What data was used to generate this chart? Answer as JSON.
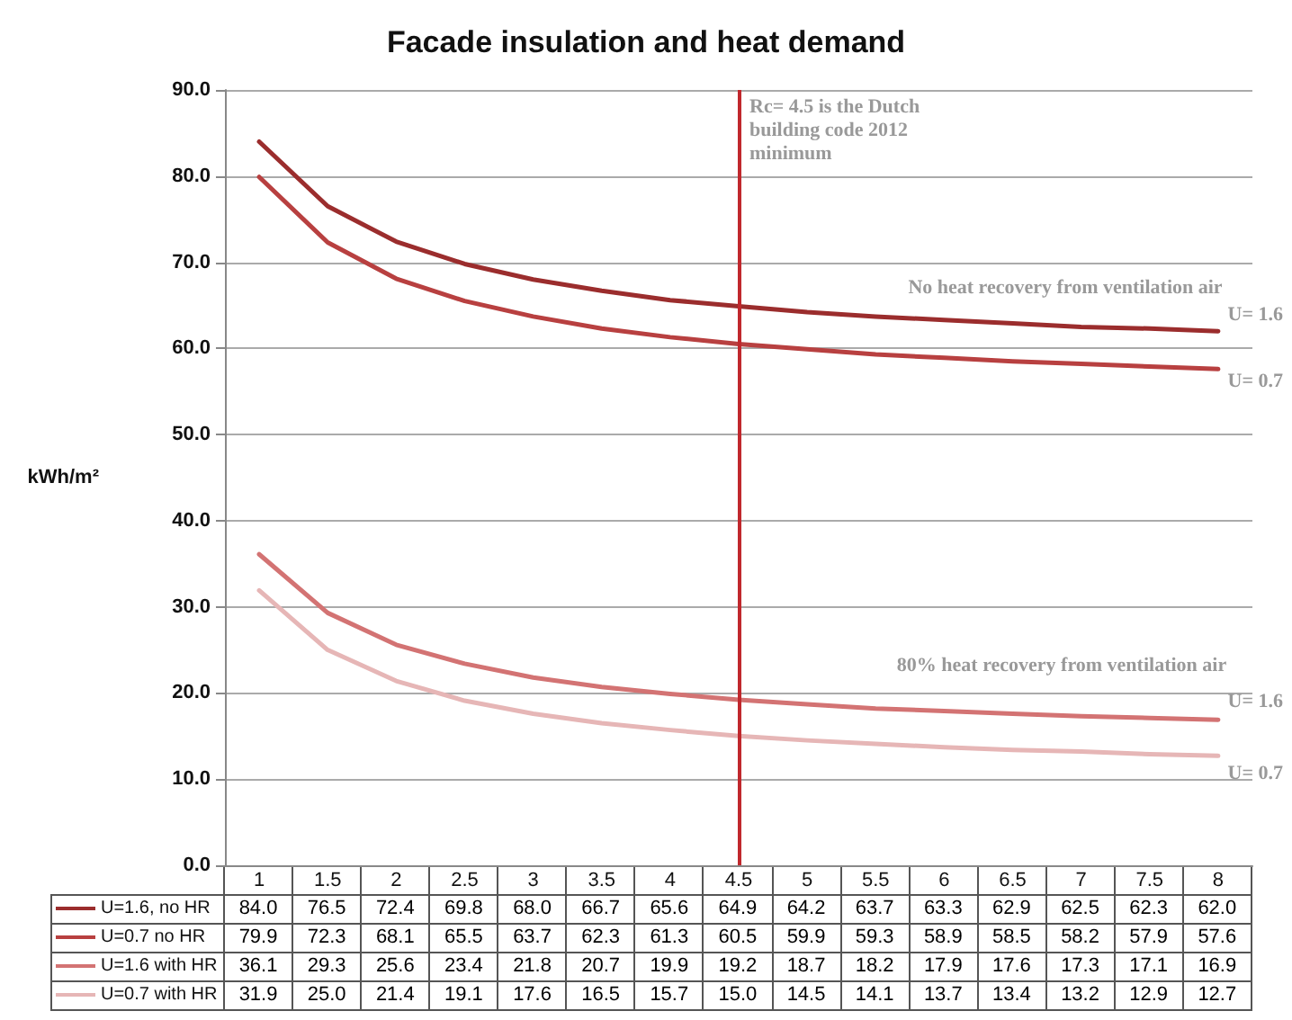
{
  "chart_data": {
    "type": "line",
    "title": "Facade insulation and heat demand",
    "ylabel": "kWh/m²",
    "categories": [
      "1",
      "1.5",
      "2",
      "2.5",
      "3",
      "3.5",
      "4",
      "4.5",
      "5",
      "5.5",
      "6",
      "6.5",
      "7",
      "7.5",
      "8"
    ],
    "series": [
      {
        "name": "U=1.6, no HR",
        "color": "#9b2d2d",
        "values": [
          84.0,
          76.5,
          72.4,
          69.8,
          68.0,
          66.7,
          65.6,
          64.9,
          64.2,
          63.7,
          63.3,
          62.9,
          62.5,
          62.3,
          62.0
        ],
        "value_labels": [
          "84.0",
          "76.5",
          "72.4",
          "69.8",
          "68.0",
          "66.7",
          "65.6",
          "64.9",
          "64.2",
          "63.7",
          "63.3",
          "62.9",
          "62.5",
          "62.3",
          "62.0"
        ]
      },
      {
        "name": "U=0.7 no HR",
        "color": "#b84040",
        "values": [
          79.9,
          72.3,
          68.1,
          65.5,
          63.7,
          62.3,
          61.3,
          60.5,
          59.9,
          59.3,
          58.9,
          58.5,
          58.2,
          57.9,
          57.6
        ],
        "value_labels": [
          "79.9",
          "72.3",
          "68.1",
          "65.5",
          "63.7",
          "62.3",
          "61.3",
          "60.5",
          "59.9",
          "59.3",
          "58.9",
          "58.5",
          "58.2",
          "57.9",
          "57.6"
        ]
      },
      {
        "name": "U=1.6 with HR",
        "color": "#d37373",
        "values": [
          36.1,
          29.3,
          25.6,
          23.4,
          21.8,
          20.7,
          19.9,
          19.2,
          18.7,
          18.2,
          17.9,
          17.6,
          17.3,
          17.1,
          16.9
        ],
        "value_labels": [
          "36.1",
          "29.3",
          "25.6",
          "23.4",
          "21.8",
          "20.7",
          "19.9",
          "19.2",
          "18.7",
          "18.2",
          "17.9",
          "17.6",
          "17.3",
          "17.1",
          "16.9"
        ]
      },
      {
        "name": "U=0.7 with HR",
        "color": "#e6b6b6",
        "values": [
          31.9,
          25.0,
          21.4,
          19.1,
          17.6,
          16.5,
          15.7,
          15.0,
          14.5,
          14.1,
          13.7,
          13.4,
          13.2,
          12.9,
          12.7
        ],
        "value_labels": [
          "31.9",
          "25.0",
          "21.4",
          "19.1",
          "17.6",
          "16.5",
          "15.7",
          "15.0",
          "14.5",
          "14.1",
          "13.7",
          "13.4",
          "13.2",
          "12.9",
          "12.7"
        ]
      }
    ],
    "ylim": [
      0,
      90
    ],
    "yticks": [
      {
        "value": 0,
        "label": "0.0"
      },
      {
        "value": 10,
        "label": "10.0"
      },
      {
        "value": 20,
        "label": "20.0"
      },
      {
        "value": 30,
        "label": "30.0"
      },
      {
        "value": 40,
        "label": "40.0"
      },
      {
        "value": 50,
        "label": "50.0"
      },
      {
        "value": 60,
        "label": "60.0"
      },
      {
        "value": 70,
        "label": "70.0"
      },
      {
        "value": 80,
        "label": "80.0"
      },
      {
        "value": 90,
        "label": "90.0"
      }
    ],
    "ref_lines": [
      {
        "axis": "x",
        "value": "4.5",
        "label": "Rc= 4.5 is the Dutch building code 2012 minimum",
        "color": "#c0282d"
      }
    ],
    "annotations": [
      "No heat recovery from ventilation air",
      "U= 1.6",
      "U= 0.7",
      "80% heat recovery from ventilation air",
      "U= 1.6",
      "U= 0.7"
    ],
    "grid": "y",
    "legend": "bottom left",
    "marker": "none",
    "line_style": "solid"
  }
}
